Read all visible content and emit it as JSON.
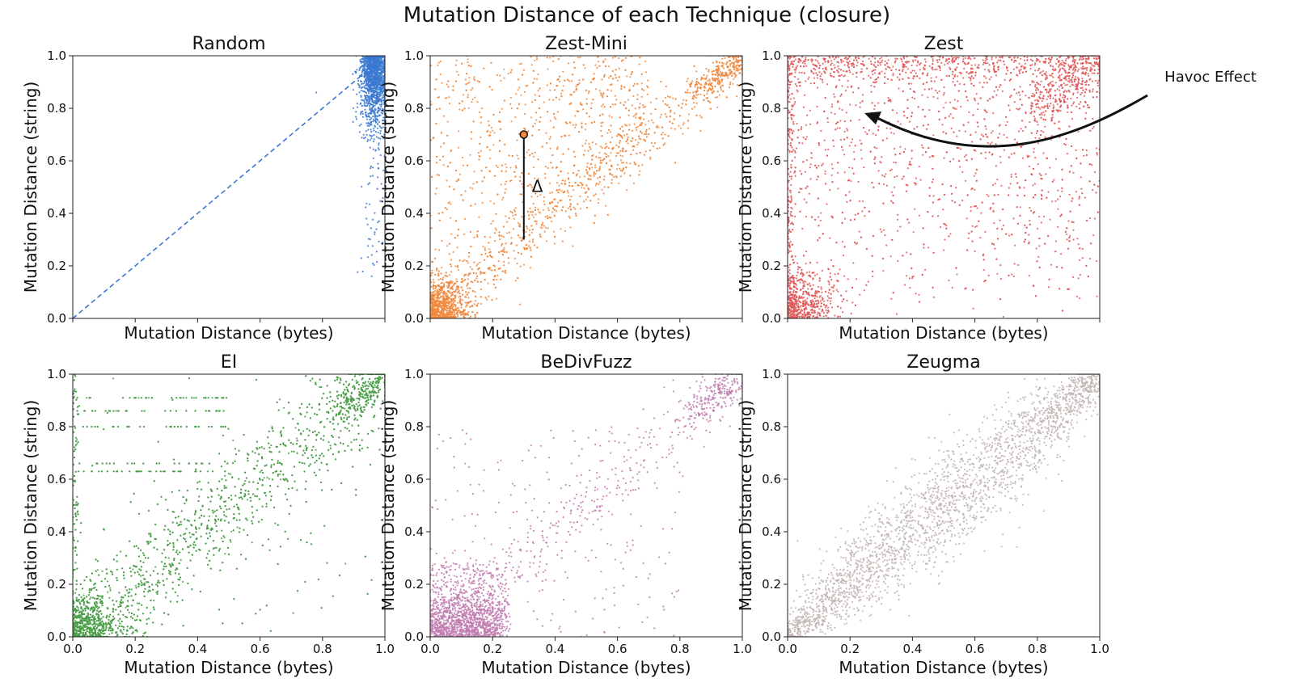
{
  "title": "Mutation Distance of each Technique (closure)",
  "annotation": {
    "havoc_label": "Havoc Effect",
    "delta_label": "Δ"
  },
  "axis": {
    "xlabel": "Mutation Distance (bytes)",
    "ylabel": "Mutation Distance (string)"
  },
  "chart_data": [
    {
      "type": "scatter",
      "title": "Random",
      "color": "#3a78d0",
      "xlim": [
        0,
        1
      ],
      "ylim": [
        0,
        1
      ],
      "yticks": [
        "0.0",
        "0.2",
        "0.4",
        "0.6",
        "0.8",
        "1.0"
      ],
      "xticks": [],
      "reference_line": "dashed diagonal y = x",
      "distribution": "points concentrated at x 0.88-1.0, y 0.5-1.0, sparse tail down to y 0.15"
    },
    {
      "type": "scatter",
      "title": "Zest-Mini",
      "color": "#f08a40",
      "xlim": [
        0,
        1
      ],
      "ylim": [
        0,
        1
      ],
      "yticks": [
        "0.0",
        "0.2",
        "0.4",
        "0.6",
        "0.8",
        "1.0"
      ],
      "xticks": [],
      "distribution": "dense cluster near origin and along diagonal up to (1,1), spread above diagonal"
    },
    {
      "type": "scatter",
      "title": "Zest",
      "color": "#e05a5a",
      "xlim": [
        0,
        1
      ],
      "ylim": [
        0,
        1
      ],
      "yticks": [
        "0.0",
        "0.2",
        "0.4",
        "0.6",
        "0.8",
        "1.0"
      ],
      "xticks": [],
      "distribution": "broadly spread, dense near origin, along top edge and near (1,1)"
    },
    {
      "type": "scatter",
      "title": "EI",
      "color": "#4a9e48",
      "xlim": [
        0,
        1
      ],
      "ylim": [
        0,
        1
      ],
      "yticks": [
        "0.0",
        "0.2",
        "0.4",
        "0.6",
        "0.8",
        "1.0"
      ],
      "xticks": [
        "0.0",
        "0.2",
        "0.4",
        "0.6",
        "0.8",
        "1.0"
      ],
      "distribution": "dense band along diagonal, horizontal streaks near y 0.85-0.92"
    },
    {
      "type": "scatter",
      "title": "BeDivFuzz",
      "color": "#c07aae",
      "xlim": [
        0,
        1
      ],
      "ylim": [
        0,
        1
      ],
      "yticks": [
        "0.0",
        "0.2",
        "0.4",
        "0.6",
        "0.8",
        "1.0"
      ],
      "xticks": [
        "0.0",
        "0.2",
        "0.4",
        "0.6",
        "0.8",
        "1.0"
      ],
      "distribution": "dense block at x 0-0.25, y 0-0.25, diagonal spread to (1,1)"
    },
    {
      "type": "scatter",
      "title": "Zeugma",
      "color": "#bfb3b0",
      "xlim": [
        0,
        1
      ],
      "ylim": [
        0,
        1
      ],
      "yticks": [
        "0.0",
        "0.2",
        "0.4",
        "0.6",
        "0.8",
        "1.0"
      ],
      "xticks": [
        "0.0",
        "0.2",
        "0.4",
        "0.6",
        "0.8",
        "1.0"
      ],
      "distribution": "tight band around the diagonal y = x"
    }
  ]
}
